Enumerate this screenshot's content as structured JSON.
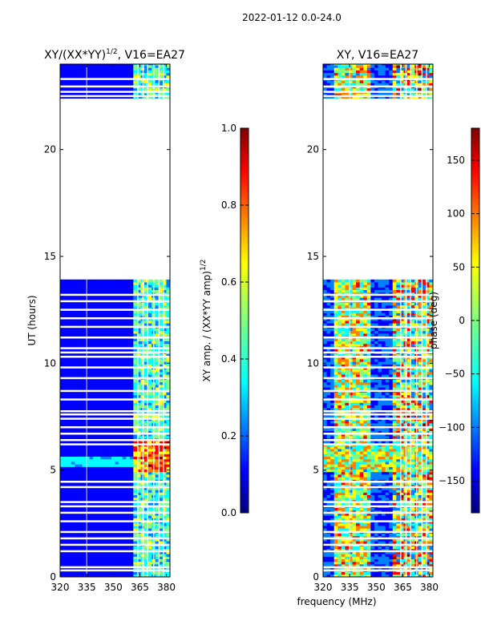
{
  "figure": {
    "suptitle": "2022-01-12 0.0-24.0"
  },
  "colors": {
    "jet": [
      "#00007f",
      "#0000ff",
      "#007fff",
      "#00ffff",
      "#7fff7f",
      "#ffff00",
      "#ff7f00",
      "#ff0000",
      "#7f0000"
    ]
  },
  "chart_data": [
    {
      "type": "heatmap",
      "title": "XY/(XX*YY)^1/2, V16=EA27",
      "title_main": "XY/(XX*YY)",
      "title_sup": "1/2",
      "title_rest": ", V16=EA27",
      "xlabel": "",
      "ylabel": "UT (hours)",
      "xlim": [
        320,
        382
      ],
      "ylim": [
        0,
        24
      ],
      "xticks": [
        320,
        335,
        350,
        365,
        380
      ],
      "yticks": [
        0,
        5,
        10,
        15,
        20
      ],
      "data_gap_hours": [
        13.8,
        22.4
      ],
      "colorbar": {
        "label": "XY amp. / (XX*YY amp)^1/2",
        "label_main": "XY amp. / (XX*YY amp)",
        "label_sup": "1/2",
        "range": [
          0.0,
          1.0
        ],
        "ticks": [
          "0.0",
          "0.2",
          "0.4",
          "0.6",
          "0.8",
          "1.0"
        ]
      }
    },
    {
      "type": "heatmap",
      "title": "XY, V16=EA27",
      "xlabel": "frequency (MHz)",
      "ylabel": "",
      "xlim": [
        320,
        382
      ],
      "ylim": [
        0,
        24
      ],
      "xticks": [
        320,
        335,
        350,
        365,
        380
      ],
      "yticks": [
        0,
        5,
        10,
        15,
        20
      ],
      "data_gap_hours": [
        13.8,
        22.4
      ],
      "colorbar": {
        "label": "phase (deg)",
        "range": [
          -180,
          180
        ],
        "ticks": [
          "-150",
          "-100",
          "-50",
          "0",
          "50",
          "100",
          "150"
        ]
      }
    }
  ]
}
